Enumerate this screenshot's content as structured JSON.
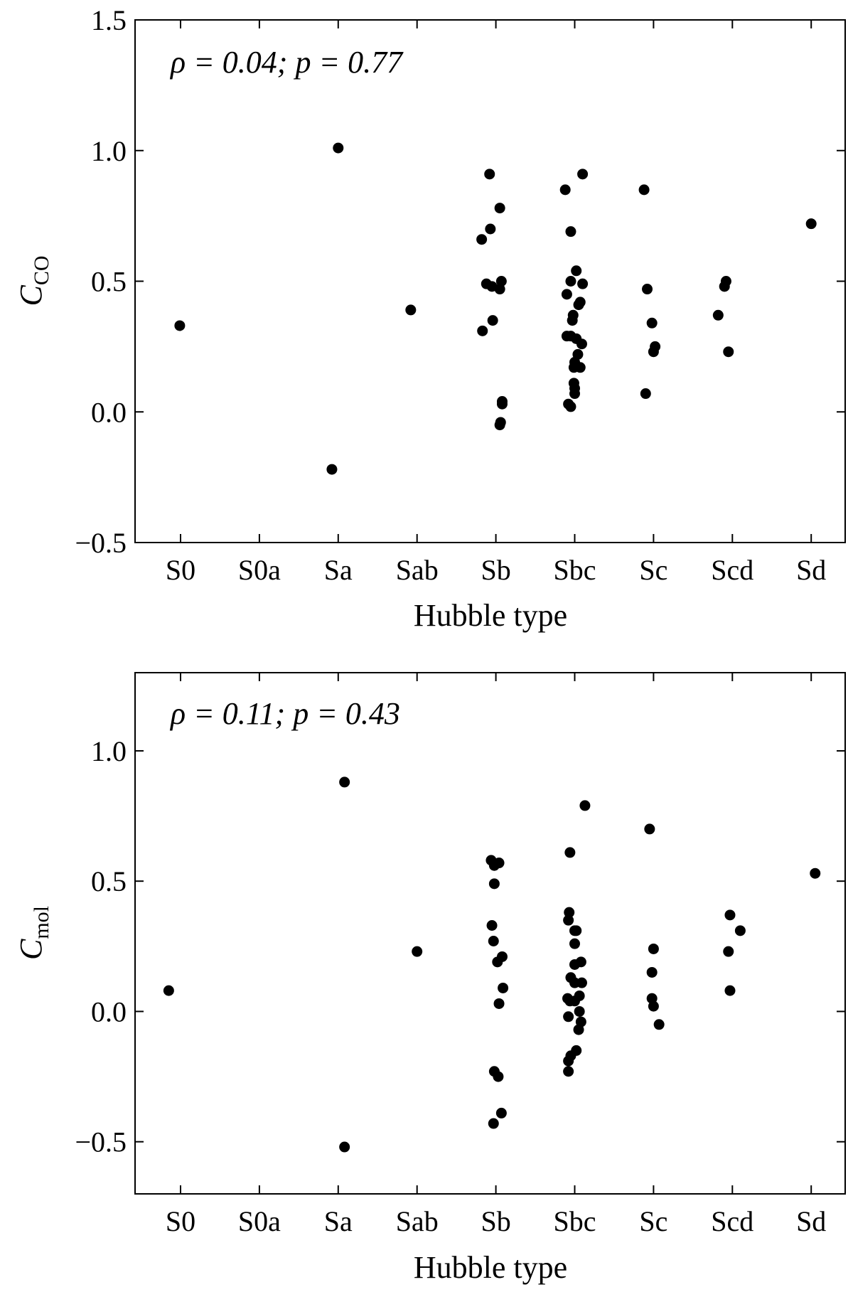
{
  "chart_data": [
    {
      "type": "scatter",
      "annotation": "ρ = 0.04; p = 0.77",
      "xlabel": "Hubble type",
      "ylabel": "C_CO",
      "ylabel_main": "C",
      "ylabel_sub": "CO",
      "categories": [
        "S0",
        "S0a",
        "Sa",
        "Sab",
        "Sb",
        "Sbc",
        "Sc",
        "Scd",
        "Sd"
      ],
      "ylim": [
        -0.5,
        1.5
      ],
      "yticks": [
        "−0.5",
        "0.0",
        "0.5",
        "1.0",
        "1.5"
      ],
      "ytick_values": [
        -0.5,
        0.0,
        0.5,
        1.0,
        1.5
      ],
      "points": [
        {
          "x": -0.01,
          "y": 0.33
        },
        {
          "x": 1.92,
          "y": -0.22
        },
        {
          "x": 2.0,
          "y": 1.01
        },
        {
          "x": 2.92,
          "y": 0.39
        },
        {
          "x": 3.92,
          "y": 0.91
        },
        {
          "x": 4.05,
          "y": 0.78
        },
        {
          "x": 3.93,
          "y": 0.7
        },
        {
          "x": 3.82,
          "y": 0.66
        },
        {
          "x": 3.88,
          "y": 0.49
        },
        {
          "x": 3.95,
          "y": 0.48
        },
        {
          "x": 4.07,
          "y": 0.5
        },
        {
          "x": 4.05,
          "y": 0.47
        },
        {
          "x": 3.96,
          "y": 0.35
        },
        {
          "x": 3.83,
          "y": 0.31
        },
        {
          "x": 4.08,
          "y": 0.04
        },
        {
          "x": 4.08,
          "y": 0.03
        },
        {
          "x": 4.06,
          "y": -0.04
        },
        {
          "x": 4.05,
          "y": -0.05
        },
        {
          "x": 4.88,
          "y": 0.85
        },
        {
          "x": 5.1,
          "y": 0.91
        },
        {
          "x": 4.95,
          "y": 0.69
        },
        {
          "x": 5.02,
          "y": 0.54
        },
        {
          "x": 4.95,
          "y": 0.5
        },
        {
          "x": 5.1,
          "y": 0.49
        },
        {
          "x": 4.9,
          "y": 0.45
        },
        {
          "x": 5.07,
          "y": 0.42
        },
        {
          "x": 5.05,
          "y": 0.41
        },
        {
          "x": 4.98,
          "y": 0.37
        },
        {
          "x": 4.97,
          "y": 0.35
        },
        {
          "x": 4.9,
          "y": 0.29
        },
        {
          "x": 4.95,
          "y": 0.29
        },
        {
          "x": 5.02,
          "y": 0.28
        },
        {
          "x": 5.09,
          "y": 0.26
        },
        {
          "x": 5.04,
          "y": 0.22
        },
        {
          "x": 5.0,
          "y": 0.19
        },
        {
          "x": 4.99,
          "y": 0.17
        },
        {
          "x": 5.07,
          "y": 0.17
        },
        {
          "x": 4.99,
          "y": 0.11
        },
        {
          "x": 5.0,
          "y": 0.09
        },
        {
          "x": 5.0,
          "y": 0.07
        },
        {
          "x": 4.92,
          "y": 0.03
        },
        {
          "x": 4.95,
          "y": 0.02
        },
        {
          "x": 5.88,
          "y": 0.85
        },
        {
          "x": 5.92,
          "y": 0.47
        },
        {
          "x": 5.98,
          "y": 0.34
        },
        {
          "x": 6.02,
          "y": 0.25
        },
        {
          "x": 6.0,
          "y": 0.23
        },
        {
          "x": 5.9,
          "y": 0.07
        },
        {
          "x": 6.82,
          "y": 0.37
        },
        {
          "x": 6.92,
          "y": 0.5
        },
        {
          "x": 6.9,
          "y": 0.48
        },
        {
          "x": 6.95,
          "y": 0.23
        },
        {
          "x": 8.0,
          "y": 0.72
        }
      ]
    },
    {
      "type": "scatter",
      "annotation": "ρ = 0.11; p = 0.43",
      "xlabel": "Hubble type",
      "ylabel": "C_mol",
      "ylabel_main": "C",
      "ylabel_sub": "mol",
      "categories": [
        "S0",
        "S0a",
        "Sa",
        "Sab",
        "Sb",
        "Sbc",
        "Sc",
        "Scd",
        "Sd"
      ],
      "ylim": [
        -0.7,
        1.3
      ],
      "yticks": [
        "−0.5",
        "0.0",
        "0.5",
        "1.0"
      ],
      "ytick_values": [
        -0.5,
        0.0,
        0.5,
        1.0
      ],
      "points": [
        {
          "x": -0.15,
          "y": 0.08
        },
        {
          "x": 2.08,
          "y": 0.88
        },
        {
          "x": 2.08,
          "y": -0.52
        },
        {
          "x": 3.0,
          "y": 0.23
        },
        {
          "x": 3.94,
          "y": 0.58
        },
        {
          "x": 4.04,
          "y": 0.57
        },
        {
          "x": 3.98,
          "y": 0.56
        },
        {
          "x": 3.98,
          "y": 0.49
        },
        {
          "x": 3.95,
          "y": 0.33
        },
        {
          "x": 3.97,
          "y": 0.27
        },
        {
          "x": 4.08,
          "y": 0.21
        },
        {
          "x": 4.02,
          "y": 0.19
        },
        {
          "x": 4.09,
          "y": 0.09
        },
        {
          "x": 4.04,
          "y": 0.03
        },
        {
          "x": 3.98,
          "y": -0.23
        },
        {
          "x": 4.03,
          "y": -0.25
        },
        {
          "x": 4.07,
          "y": -0.39
        },
        {
          "x": 3.97,
          "y": -0.43
        },
        {
          "x": 5.13,
          "y": 0.79
        },
        {
          "x": 4.94,
          "y": 0.61
        },
        {
          "x": 4.93,
          "y": 0.38
        },
        {
          "x": 4.92,
          "y": 0.35
        },
        {
          "x": 5.0,
          "y": 0.31
        },
        {
          "x": 5.02,
          "y": 0.31
        },
        {
          "x": 5.0,
          "y": 0.26
        },
        {
          "x": 5.08,
          "y": 0.19
        },
        {
          "x": 5.0,
          "y": 0.18
        },
        {
          "x": 4.95,
          "y": 0.13
        },
        {
          "x": 5.0,
          "y": 0.11
        },
        {
          "x": 5.09,
          "y": 0.11
        },
        {
          "x": 4.94,
          "y": 0.04
        },
        {
          "x": 4.91,
          "y": 0.05
        },
        {
          "x": 5.06,
          "y": 0.06
        },
        {
          "x": 5.0,
          "y": 0.04
        },
        {
          "x": 5.06,
          "y": 0.0
        },
        {
          "x": 4.92,
          "y": -0.02
        },
        {
          "x": 5.08,
          "y": -0.04
        },
        {
          "x": 5.05,
          "y": -0.07
        },
        {
          "x": 5.02,
          "y": -0.15
        },
        {
          "x": 4.95,
          "y": -0.17
        },
        {
          "x": 4.92,
          "y": -0.19
        },
        {
          "x": 4.92,
          "y": -0.23
        },
        {
          "x": 5.95,
          "y": 0.7
        },
        {
          "x": 6.0,
          "y": 0.24
        },
        {
          "x": 5.98,
          "y": 0.15
        },
        {
          "x": 5.98,
          "y": 0.05
        },
        {
          "x": 6.0,
          "y": 0.02
        },
        {
          "x": 6.07,
          "y": -0.05
        },
        {
          "x": 6.97,
          "y": 0.37
        },
        {
          "x": 7.1,
          "y": 0.31
        },
        {
          "x": 6.95,
          "y": 0.23
        },
        {
          "x": 6.97,
          "y": 0.08
        },
        {
          "x": 8.05,
          "y": 0.53
        }
      ]
    }
  ]
}
